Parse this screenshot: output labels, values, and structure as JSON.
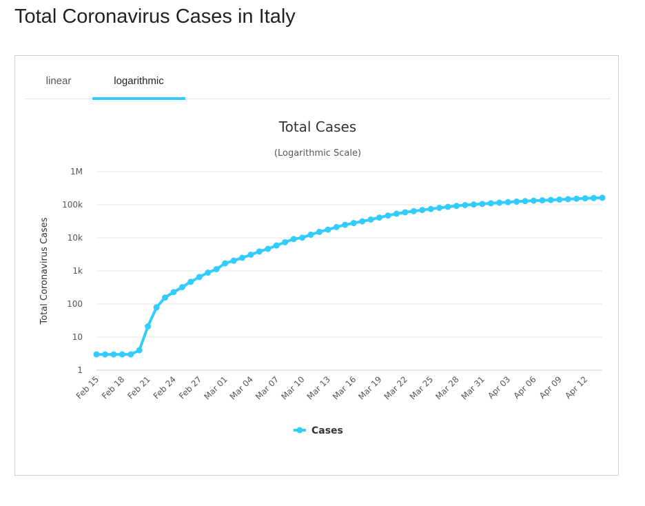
{
  "page": {
    "title": "Total Coronavirus Cases in Italy"
  },
  "tabs": [
    {
      "label": "linear",
      "active": false
    },
    {
      "label": "logarithmic",
      "active": true
    }
  ],
  "chart_data": {
    "type": "line",
    "title": "Total Cases",
    "subtitle": "(Logarithmic Scale)",
    "ylabel": "Total Coronavirus Cases",
    "xlabel": "",
    "yscale": "log",
    "ylim": [
      1,
      1000000
    ],
    "y_ticks": [
      1,
      10,
      100,
      1000,
      10000,
      100000,
      1000000
    ],
    "y_tick_labels": [
      "1",
      "10",
      "100",
      "1k",
      "10k",
      "100k",
      "1M"
    ],
    "x_tick_labels": [
      "Feb 15",
      "Feb 18",
      "Feb 21",
      "Feb 24",
      "Feb 27",
      "Mar 01",
      "Mar 04",
      "Mar 07",
      "Mar 10",
      "Mar 13",
      "Mar 16",
      "Mar 19",
      "Mar 22",
      "Mar 25",
      "Mar 28",
      "Mar 31",
      "Apr 03",
      "Apr 06",
      "Apr 09",
      "Apr 12"
    ],
    "x_tick_every": 3,
    "grid": true,
    "legend_position": "bottom-center",
    "color": "#33ccff",
    "series": [
      {
        "name": "Cases",
        "x": [
          "Feb 15",
          "Feb 16",
          "Feb 17",
          "Feb 18",
          "Feb 19",
          "Feb 20",
          "Feb 21",
          "Feb 22",
          "Feb 23",
          "Feb 24",
          "Feb 25",
          "Feb 26",
          "Feb 27",
          "Feb 28",
          "Feb 29",
          "Mar 01",
          "Mar 02",
          "Mar 03",
          "Mar 04",
          "Mar 05",
          "Mar 06",
          "Mar 07",
          "Mar 08",
          "Mar 09",
          "Mar 10",
          "Mar 11",
          "Mar 12",
          "Mar 13",
          "Mar 14",
          "Mar 15",
          "Mar 16",
          "Mar 17",
          "Mar 18",
          "Mar 19",
          "Mar 20",
          "Mar 21",
          "Mar 22",
          "Mar 23",
          "Mar 24",
          "Mar 25",
          "Mar 26",
          "Mar 27",
          "Mar 28",
          "Mar 29",
          "Mar 30",
          "Mar 31",
          "Apr 01",
          "Apr 02",
          "Apr 03",
          "Apr 04",
          "Apr 05",
          "Apr 06",
          "Apr 07",
          "Apr 08",
          "Apr 09",
          "Apr 10",
          "Apr 11",
          "Apr 12",
          "Apr 13",
          "Apr 14"
        ],
        "values": [
          3,
          3,
          3,
          3,
          3,
          4,
          21,
          79,
          157,
          229,
          323,
          470,
          655,
          889,
          1128,
          1694,
          2036,
          2502,
          3089,
          3858,
          4636,
          5883,
          7375,
          9172,
          10149,
          12462,
          15113,
          17660,
          21157,
          24747,
          27980,
          31506,
          35713,
          41035,
          47021,
          53578,
          59138,
          63927,
          69176,
          74386,
          80589,
          86498,
          92472,
          97689,
          101739,
          105792,
          110574,
          115242,
          119827,
          124632,
          128948,
          132547,
          135586,
          139422,
          143626,
          147577,
          152271,
          156363,
          159516,
          162488
        ]
      }
    ]
  }
}
